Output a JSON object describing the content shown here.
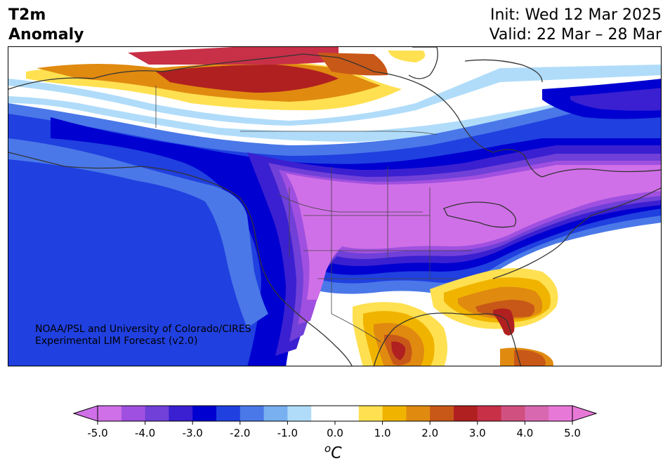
{
  "header": {
    "title_line1": "T2m",
    "title_line2": "Anomaly",
    "init_text": "Init: Wed 12 Mar 2025",
    "valid_text": "Valid: 22 Mar – 28 Mar"
  },
  "credit": {
    "line1": "NOAA/PSL and University of Colorado/CIRES",
    "line2": "Experimental LIM Forecast (v2.0)"
  },
  "colorbar": {
    "ticks": [
      "-5.0",
      "-4.0",
      "-3.0",
      "-2.0",
      "-1.0",
      "0.0",
      "1.0",
      "2.0",
      "3.0",
      "4.0",
      "5.0"
    ],
    "unit_base": "C",
    "unit_sup": "o",
    "colors": [
      "#d070e8",
      "#a050e0",
      "#7040d8",
      "#3a20d0",
      "#0000d0",
      "#2040e0",
      "#4a78e8",
      "#78b0f0",
      "#b0dcfa",
      "#ffffff",
      "#ffffff",
      "#ffe050",
      "#f0b400",
      "#e08a10",
      "#c85818",
      "#b02020",
      "#c83048",
      "#d05080",
      "#d868b0",
      "#e878d8"
    ]
  }
}
